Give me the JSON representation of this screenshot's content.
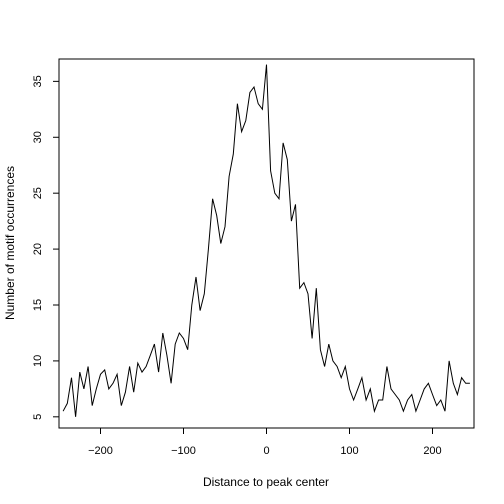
{
  "chart_data": {
    "type": "line",
    "title": "",
    "xlabel": "Distance to peak center",
    "ylabel": "Number of motif occurrences",
    "xlim": [
      -250,
      250
    ],
    "ylim": [
      4,
      37
    ],
    "x_ticks": [
      -200,
      -100,
      0,
      100,
      200
    ],
    "y_ticks": [
      5,
      10,
      15,
      20,
      25,
      30,
      35
    ],
    "grid": false,
    "legend": "none",
    "series": [
      {
        "color": "#000000",
        "x": [
          -245,
          -240,
          -235,
          -230,
          -225,
          -220,
          -215,
          -210,
          -205,
          -200,
          -195,
          -190,
          -185,
          -180,
          -175,
          -170,
          -165,
          -160,
          -155,
          -150,
          -145,
          -140,
          -135,
          -130,
          -125,
          -120,
          -115,
          -110,
          -105,
          -100,
          -95,
          -90,
          -85,
          -80,
          -75,
          -70,
          -65,
          -60,
          -55,
          -50,
          -45,
          -40,
          -35,
          -30,
          -25,
          -20,
          -15,
          -10,
          -5,
          0,
          5,
          10,
          15,
          20,
          25,
          30,
          35,
          40,
          45,
          50,
          55,
          60,
          65,
          70,
          75,
          80,
          85,
          90,
          95,
          100,
          105,
          110,
          115,
          120,
          125,
          130,
          135,
          140,
          145,
          150,
          155,
          160,
          165,
          170,
          175,
          180,
          185,
          190,
          195,
          200,
          205,
          210,
          215,
          220,
          225,
          230,
          235,
          240,
          245
        ],
        "y": [
          5.5,
          6.2,
          8.5,
          5.0,
          9.0,
          7.5,
          9.5,
          6.0,
          7.5,
          8.8,
          9.2,
          7.5,
          8.0,
          8.8,
          6.0,
          7.2,
          9.5,
          7.2,
          9.8,
          9.0,
          9.5,
          10.5,
          11.5,
          9.0,
          12.5,
          10.5,
          8.0,
          11.5,
          12.5,
          12.0,
          11.0,
          15.0,
          17.5,
          14.5,
          16.0,
          20.0,
          24.5,
          23.0,
          20.5,
          22.0,
          26.5,
          28.5,
          33.0,
          30.5,
          31.5,
          34.0,
          34.5,
          33.0,
          32.5,
          36.5,
          27.0,
          25.0,
          24.5,
          29.5,
          28.0,
          22.5,
          24.0,
          16.5,
          17.0,
          16.0,
          12.0,
          16.5,
          11.0,
          9.5,
          11.5,
          10.0,
          9.5,
          8.5,
          9.5,
          7.5,
          6.5,
          7.5,
          8.5,
          6.5,
          7.5,
          5.5,
          6.5,
          6.5,
          9.5,
          7.5,
          7.0,
          6.5,
          5.5,
          6.5,
          7.0,
          5.5,
          6.5,
          7.5,
          8.0,
          7.0,
          6.0,
          6.5,
          5.5,
          10.0,
          8.0,
          7.0,
          8.5,
          8.0,
          8.0
        ]
      }
    ]
  }
}
